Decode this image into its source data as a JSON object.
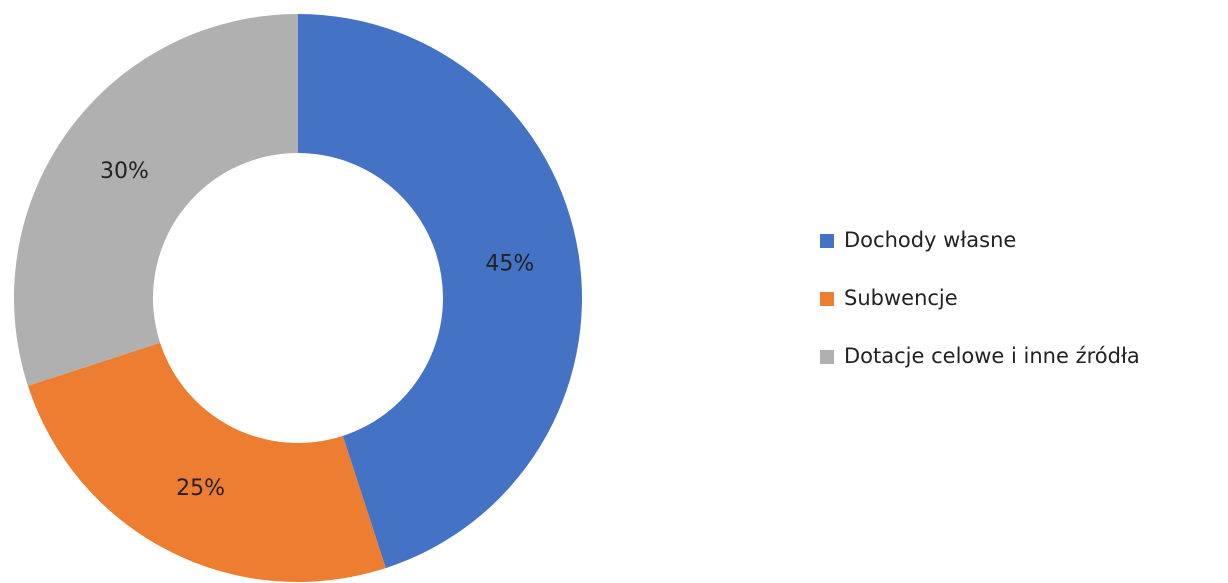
{
  "chart_data": {
    "type": "donut",
    "categories": [
      "Dochody własne",
      "Subwencje",
      "Dotacje celowe i inne źródła"
    ],
    "values": [
      45,
      25,
      30
    ],
    "value_labels": [
      "45%",
      "25%",
      "30%"
    ],
    "colors": [
      "#4472c4",
      "#ed7d31",
      "#b0b0b0"
    ],
    "legend": "right"
  }
}
